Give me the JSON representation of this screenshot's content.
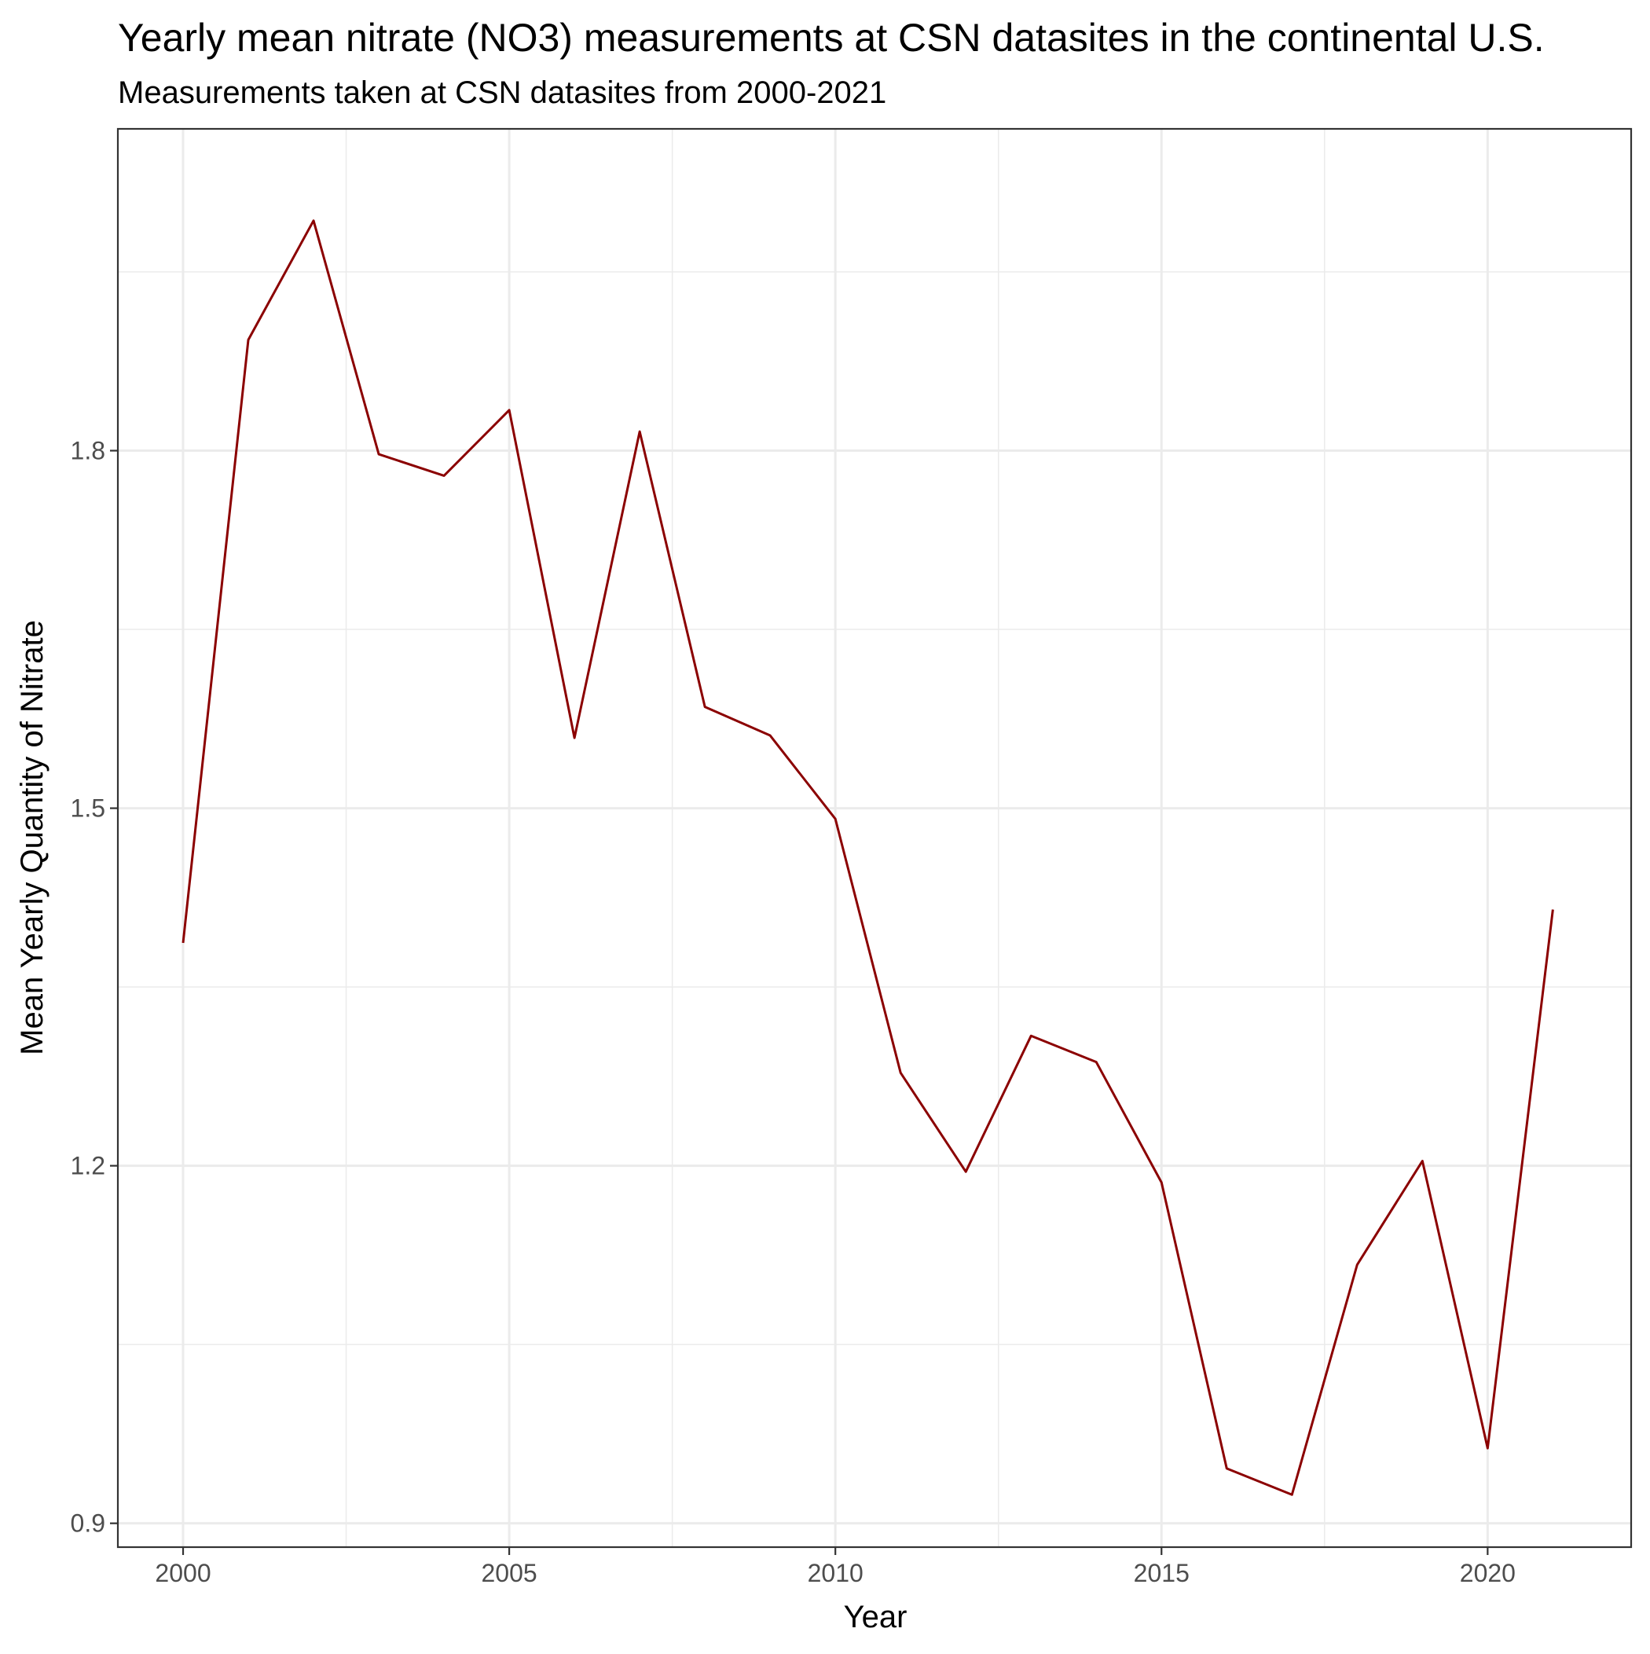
{
  "chart_data": {
    "type": "line",
    "title": "Yearly mean nitrate (NO3) measurements at CSN datasites in the continental U.S.",
    "subtitle": "Measurements taken at CSN datasites from 2000-2021",
    "xlabel": "Year",
    "ylabel": "Mean Yearly Quantity of Nitrate",
    "xlim": [
      1999,
      2022.2
    ],
    "ylim": [
      0.88,
      2.07
    ],
    "x_ticks": [
      2000,
      2005,
      2010,
      2015,
      2020
    ],
    "x_tick_labels": [
      "2000",
      "2005",
      "2010",
      "2015",
      "2020"
    ],
    "y_ticks": [
      0.9,
      1.2,
      1.5,
      1.8
    ],
    "y_tick_labels": [
      "0.9",
      "1.2",
      "1.5",
      "1.8"
    ],
    "x_minor": [
      2002.5,
      2007.5,
      2012.5,
      2017.5
    ],
    "y_minor": [
      1.05,
      1.35,
      1.65,
      1.95
    ],
    "grid": true,
    "legend": "none",
    "series": [
      {
        "color": "#8b0000",
        "x": [
          2000,
          2001,
          2002,
          2003,
          2004,
          2005,
          2006,
          2007,
          2008,
          2009,
          2010,
          2011,
          2012,
          2013,
          2014,
          2015,
          2016,
          2017,
          2018,
          2019,
          2020,
          2021
        ],
        "values": [
          1.387,
          1.893,
          1.993,
          1.797,
          1.779,
          1.834,
          1.559,
          1.816,
          1.585,
          1.561,
          1.491,
          1.278,
          1.195,
          1.309,
          1.287,
          1.186,
          0.946,
          0.924,
          1.117,
          1.204,
          0.963,
          1.415
        ]
      }
    ]
  }
}
